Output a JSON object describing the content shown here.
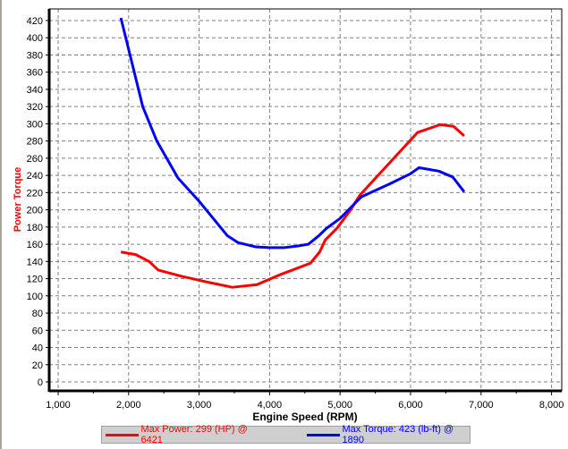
{
  "chart_data": {
    "type": "line",
    "xlabel": "Engine Speed (RPM)",
    "ylabel": "Power  Torque",
    "xlim": [
      1000,
      8000
    ],
    "ylim": [
      0,
      420
    ],
    "xticks": [
      "1,000",
      "2,000",
      "3,000",
      "4,000",
      "5,000",
      "6,000",
      "7,000",
      "8,000"
    ],
    "yticks": [
      "0",
      "20",
      "40",
      "60",
      "80",
      "100",
      "120",
      "140",
      "160",
      "180",
      "200",
      "220",
      "240",
      "260",
      "280",
      "300",
      "320",
      "340",
      "360",
      "380",
      "400",
      "420"
    ],
    "grid": true,
    "legend_position": "bottom",
    "series": [
      {
        "name": "Max Power: 299 (HP) @ 6421",
        "color": "#ff0000",
        "x": [
          1890,
          2100,
          2290,
          2420,
          2740,
          3120,
          3470,
          3820,
          4130,
          4580,
          4710,
          4790,
          4960,
          5150,
          5280,
          6100,
          6420,
          6610,
          6760
        ],
        "y": [
          151,
          148,
          140,
          130,
          123,
          116,
          110,
          113,
          124,
          138,
          151,
          165,
          179,
          200,
          217,
          290,
          299,
          297,
          286
        ]
      },
      {
        "name": "Max Torque: 423 (lb-ft) @ 1890",
        "color": "#0000ff",
        "x": [
          1890,
          2050,
          2200,
          2400,
          2700,
          3000,
          3200,
          3400,
          3550,
          3800,
          4000,
          4200,
          4400,
          4550,
          4700,
          4800,
          5000,
          5300,
          5700,
          6000,
          6120,
          6400,
          6600,
          6760
        ],
        "y": [
          423,
          370,
          320,
          280,
          237,
          210,
          190,
          170,
          162,
          157,
          156,
          156,
          158,
          160,
          170,
          178,
          190,
          215,
          230,
          242,
          249,
          245,
          238,
          221
        ]
      }
    ]
  }
}
